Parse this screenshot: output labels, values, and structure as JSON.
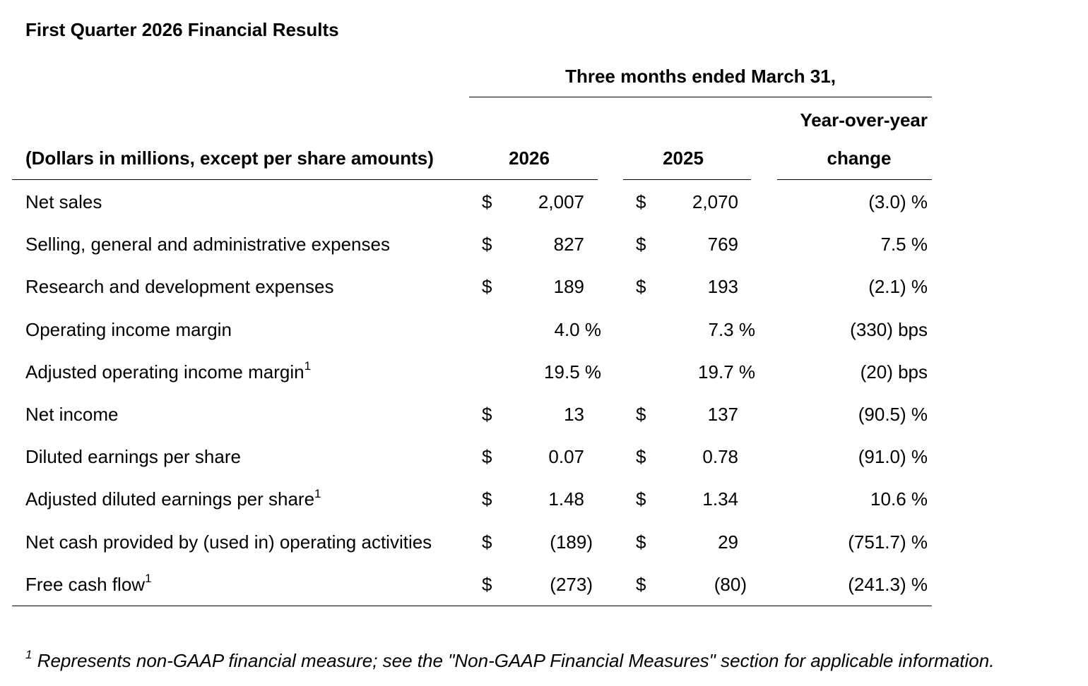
{
  "title": "First Quarter 2026 Financial Results",
  "header": {
    "period": "Three months ended March 31,",
    "units": "(Dollars in millions, except per share amounts)",
    "col_2026": "2026",
    "col_2025": "2025",
    "col_change_line1": "Year-over-year",
    "col_change_line2": "change"
  },
  "rows": [
    {
      "label": "Net sales",
      "sup": "",
      "d1": "$",
      "v2026": "2,007",
      "d2": "$",
      "v2025": "2,070",
      "change": "(3.0) %"
    },
    {
      "label": "Selling, general and administrative expenses",
      "sup": "",
      "d1": "$",
      "v2026": "827",
      "d2": "$",
      "v2025": "769",
      "change": "7.5 %"
    },
    {
      "label": "Research and development expenses",
      "sup": "",
      "d1": "$",
      "v2026": "189",
      "d2": "$",
      "v2025": "193",
      "change": "(2.1) %"
    },
    {
      "label": "Operating income margin",
      "sup": "",
      "d1": "",
      "v2026": "4.0 %",
      "d2": "",
      "v2025": "7.3 %",
      "change": "(330) bps"
    },
    {
      "label": "Adjusted operating income margin",
      "sup": "1",
      "d1": "",
      "v2026": "19.5 %",
      "d2": "",
      "v2025": "19.7 %",
      "change": "(20) bps"
    },
    {
      "label": "Net income",
      "sup": "",
      "d1": "$",
      "v2026": "13",
      "d2": "$",
      "v2025": "137",
      "change": "(90.5) %"
    },
    {
      "label": "Diluted earnings per share",
      "sup": "",
      "d1": "$",
      "v2026": "0.07",
      "d2": "$",
      "v2025": "0.78",
      "change": "(91.0) %"
    },
    {
      "label": "Adjusted diluted earnings per share",
      "sup": "1",
      "d1": "$",
      "v2026": "1.48",
      "d2": "$",
      "v2025": "1.34",
      "change": "10.6 %"
    },
    {
      "label": "Net cash provided by (used in) operating activities",
      "sup": "",
      "d1": "$",
      "v2026": "(189)",
      "d2": "$",
      "v2025": "29",
      "change": "(751.7) %"
    },
    {
      "label": "Free cash flow",
      "sup": "1",
      "d1": "$",
      "v2026": "(273)",
      "d2": "$",
      "v2025": "(80)",
      "change": "(241.3) %"
    }
  ],
  "footnote": {
    "marker": "1",
    "text": " Represents non-GAAP financial measure; see the \"Non-GAAP Financial Measures\" section for applicable information."
  }
}
